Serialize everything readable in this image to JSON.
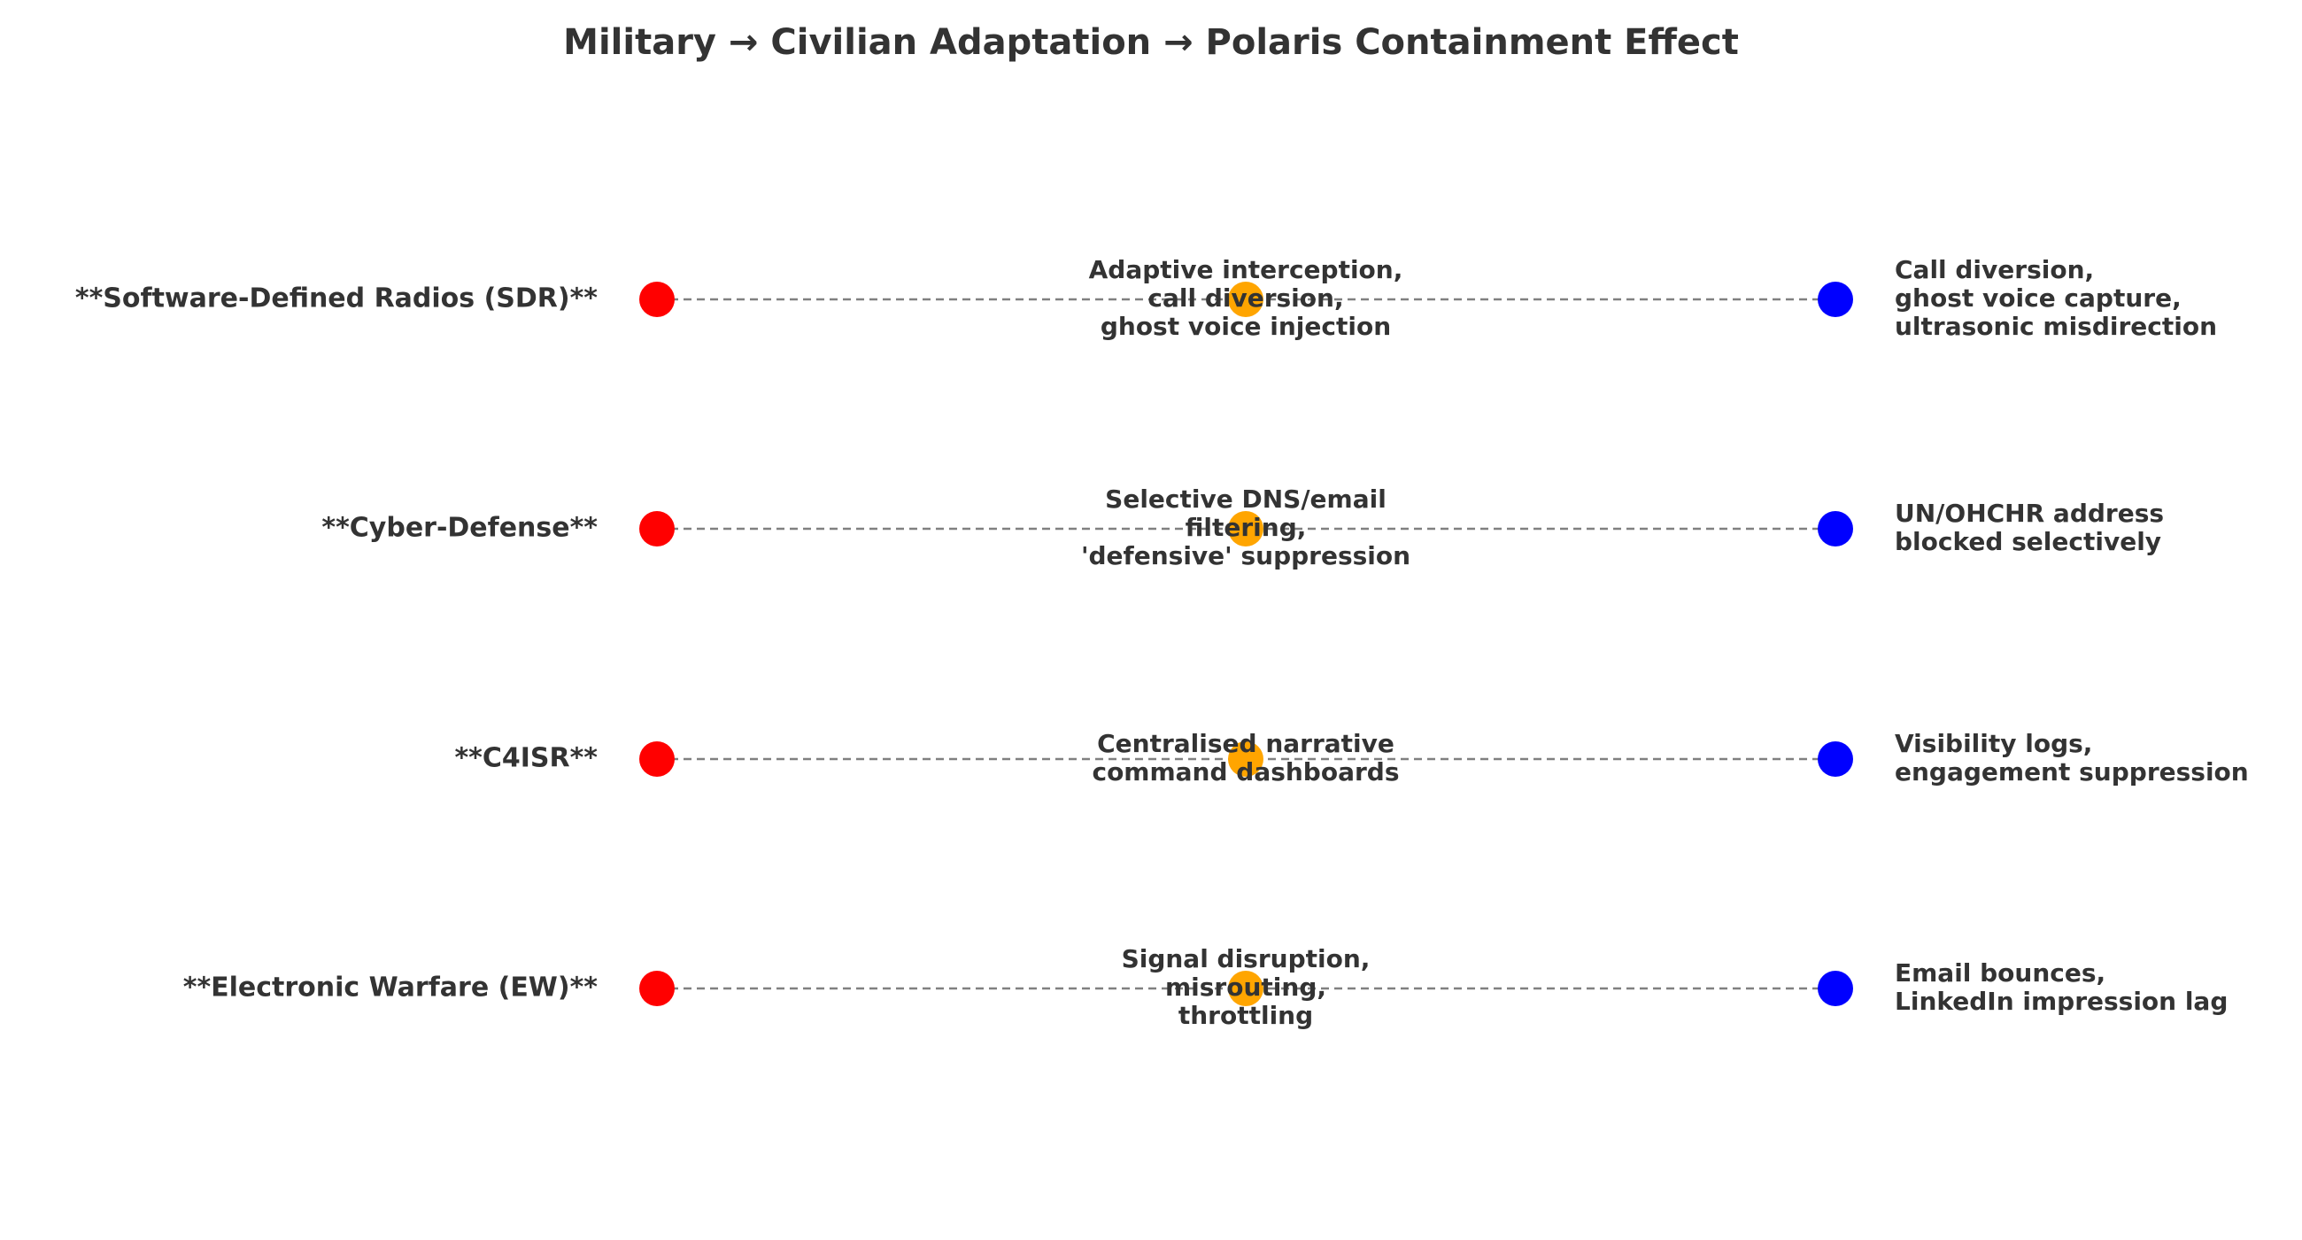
{
  "title": "Military → Civilian Adaptation → Polaris Containment Effect",
  "colors": {
    "military": "#ff0000",
    "civilian": "#ffa500",
    "containment": "#0000ff",
    "connector": "#808080",
    "text": "#333333"
  },
  "rows": [
    {
      "technology": "**Software-Defined Radios (SDR)**",
      "adaptation": [
        "Adaptive interception,",
        "call diversion,",
        "ghost voice injection"
      ],
      "effect": [
        "Call diversion,",
        "ghost voice capture,",
        "ultrasonic misdirection"
      ]
    },
    {
      "technology": "**Cyber-Defense**",
      "adaptation": [
        "Selective DNS/email",
        "filtering,",
        "'defensive' suppression"
      ],
      "effect": [
        "UN/OHCHR address",
        "blocked selectively"
      ]
    },
    {
      "technology": "**C4ISR**",
      "adaptation": [
        "Centralised narrative",
        "command dashboards"
      ],
      "effect": [
        "Visibility logs,",
        "engagement suppression"
      ]
    },
    {
      "technology": "**Electronic Warfare (EW)**",
      "adaptation": [
        "Signal disruption,",
        "misrouting,",
        "throttling"
      ],
      "effect": [
        "Email bounces,",
        "LinkedIn impression lag"
      ]
    }
  ]
}
